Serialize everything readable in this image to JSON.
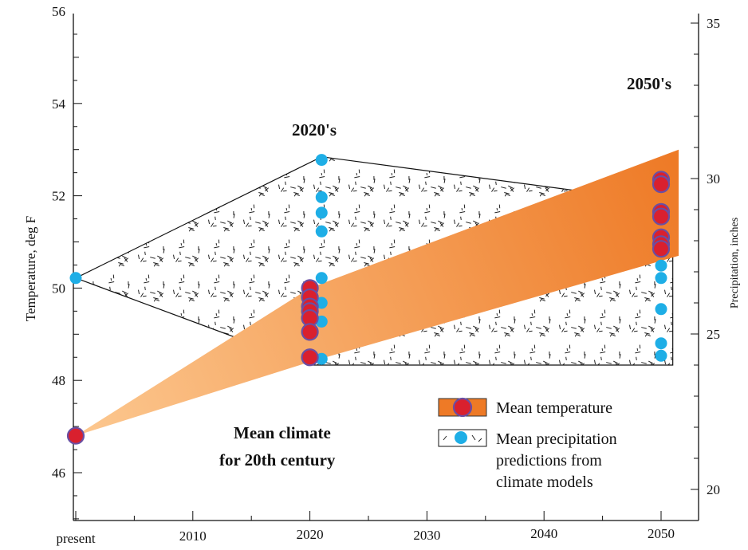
{
  "chart_data": {
    "type": "scatter",
    "title": "",
    "ylabel": "Temperature, deg F",
    "ylabel_right": "Precipitation, inches",
    "xlim": [
      2000,
      2053
    ],
    "ylim": [
      45,
      56
    ],
    "ylim_right": [
      18.5,
      35.5
    ],
    "x_ticks": [
      {
        "value": 2000,
        "label": "present"
      },
      {
        "value": 2010,
        "label": "2010"
      },
      {
        "value": 2020,
        "label": "2020"
      },
      {
        "value": 2030,
        "label": "2030"
      },
      {
        "value": 2040,
        "label": "2040"
      },
      {
        "value": 2050,
        "label": "2050"
      }
    ],
    "y_ticks": [
      46,
      48,
      50,
      52,
      54,
      56
    ],
    "y_ticks_right": [
      20,
      25,
      30,
      35
    ],
    "annotations": {
      "label_2020s": "2020's",
      "label_2050s": "2050's",
      "baseline_line1": "Mean climate",
      "baseline_line2": "for 20th century"
    },
    "legend": {
      "placement": "lower-right",
      "temperature_label": "Mean temperature",
      "precip_line1": "Mean precipitation",
      "precip_line2": "predictions from",
      "precip_line3": "climate models"
    },
    "colors": {
      "temp_band_light": "#fcc890",
      "temp_band_dark": "#ee7a26",
      "temp_marker_fill": "#d9202e",
      "temp_marker_edge": "#6a4fa3",
      "precip_marker": "#1eaee6"
    },
    "temperature_band": {
      "x": [
        2000,
        2020,
        2051.5
      ],
      "upper": [
        46.8,
        50.0,
        53.0
      ],
      "lower": [
        46.8,
        48.4,
        50.7
      ]
    },
    "precipitation_region": {
      "x": [
        2000,
        2021,
        2051,
        2051,
        2020
      ],
      "y": [
        26.8,
        30.7,
        29.2,
        24.0,
        24.0
      ]
    },
    "series": [
      {
        "name": "Mean temperature",
        "unit": "deg F",
        "points": [
          {
            "x": 2000,
            "y": 46.8
          },
          {
            "x": 2020,
            "y": 50.0
          },
          {
            "x": 2020,
            "y": 49.8
          },
          {
            "x": 2020,
            "y": 49.6
          },
          {
            "x": 2020,
            "y": 49.5
          },
          {
            "x": 2020,
            "y": 49.35
          },
          {
            "x": 2020,
            "y": 49.05
          },
          {
            "x": 2020,
            "y": 48.5
          },
          {
            "x": 2050,
            "y": 52.35
          },
          {
            "x": 2050,
            "y": 52.25
          },
          {
            "x": 2050,
            "y": 51.65
          },
          {
            "x": 2050,
            "y": 51.55
          },
          {
            "x": 2050,
            "y": 51.1
          },
          {
            "x": 2050,
            "y": 50.95
          },
          {
            "x": 2050,
            "y": 50.85
          }
        ]
      },
      {
        "name": "Mean precipitation predictions from climate models",
        "unit": "inches",
        "points": [
          {
            "x": 2000,
            "y": 26.8
          },
          {
            "x": 2021,
            "y": 30.6
          },
          {
            "x": 2021,
            "y": 29.4
          },
          {
            "x": 2021,
            "y": 28.9
          },
          {
            "x": 2021,
            "y": 28.3
          },
          {
            "x": 2021,
            "y": 26.8
          },
          {
            "x": 2021,
            "y": 26.0
          },
          {
            "x": 2021,
            "y": 25.4
          },
          {
            "x": 2021,
            "y": 24.2
          },
          {
            "x": 2050,
            "y": 28.7
          },
          {
            "x": 2050,
            "y": 27.2
          },
          {
            "x": 2050,
            "y": 26.8
          },
          {
            "x": 2050,
            "y": 25.8
          },
          {
            "x": 2050,
            "y": 24.7
          },
          {
            "x": 2050,
            "y": 24.3
          }
        ]
      }
    ]
  }
}
